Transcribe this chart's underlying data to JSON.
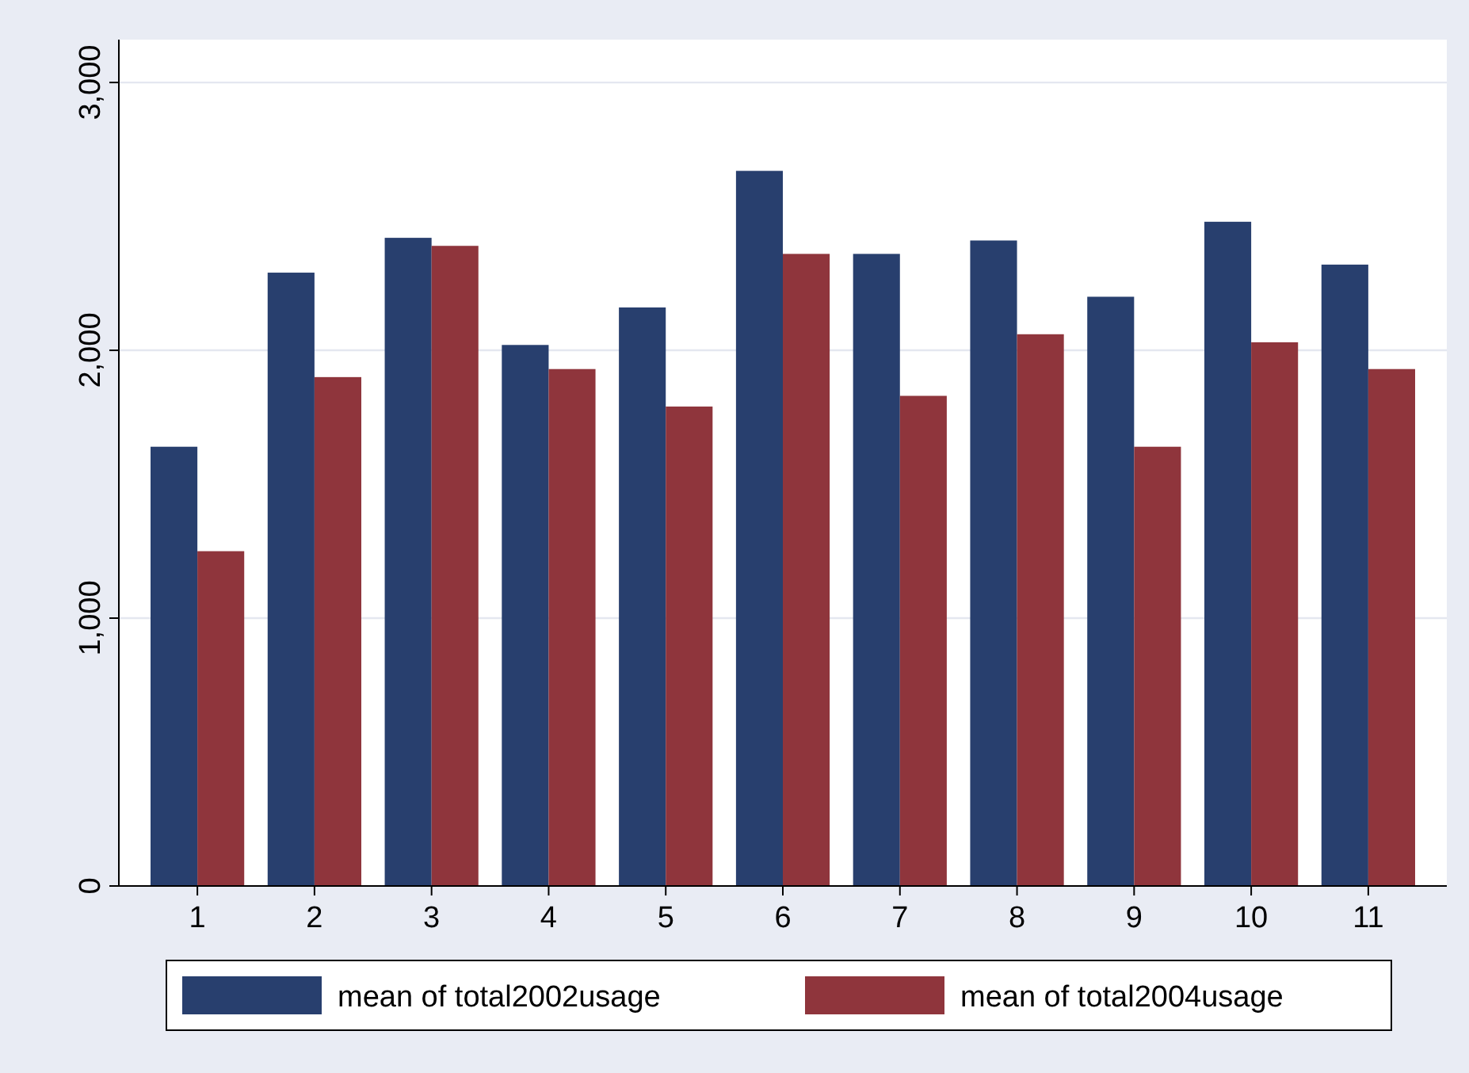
{
  "chart_data": {
    "type": "bar",
    "categories": [
      "1",
      "2",
      "3",
      "4",
      "5",
      "6",
      "7",
      "8",
      "9",
      "10",
      "11"
    ],
    "series": [
      {
        "name": "mean of total2002usage",
        "color": "#283f6e",
        "values": [
          1640,
          2290,
          2420,
          2020,
          2160,
          2670,
          2360,
          2410,
          2200,
          2480,
          2320
        ]
      },
      {
        "name": "mean of total2004usage",
        "color": "#8f353c",
        "values": [
          1250,
          1900,
          2390,
          1930,
          1790,
          2360,
          1830,
          2060,
          1640,
          2030,
          1930
        ]
      }
    ],
    "ylim": [
      0,
      3160
    ],
    "yticks": [
      0,
      {
        "value": 1000,
        "label": "1,000"
      },
      {
        "value": 2000,
        "label": "2,000"
      },
      {
        "value": 3000,
        "label": "3,000"
      }
    ],
    "grid": "y",
    "legend": "bottom"
  }
}
